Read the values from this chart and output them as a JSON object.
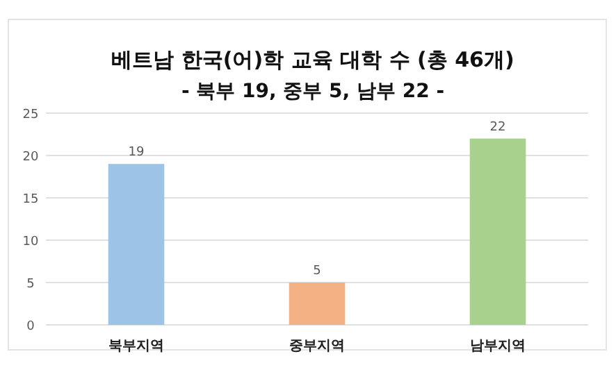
{
  "chart_data": {
    "type": "bar",
    "title": "베트남 한국(어)학 교육 대학 수 (총 46개)",
    "subtitle": "- 북부 19, 중부 5, 남부 22 -",
    "categories": [
      "북부지역",
      "중부지역",
      "남부지역"
    ],
    "values": [
      19,
      5,
      22
    ],
    "colors": [
      "#9dc3e6",
      "#f4b183",
      "#a9d18e"
    ],
    "ylim": [
      0,
      25
    ],
    "yticks": [
      0,
      5,
      10,
      15,
      20,
      25
    ],
    "grid": "y",
    "data_labels": true
  }
}
